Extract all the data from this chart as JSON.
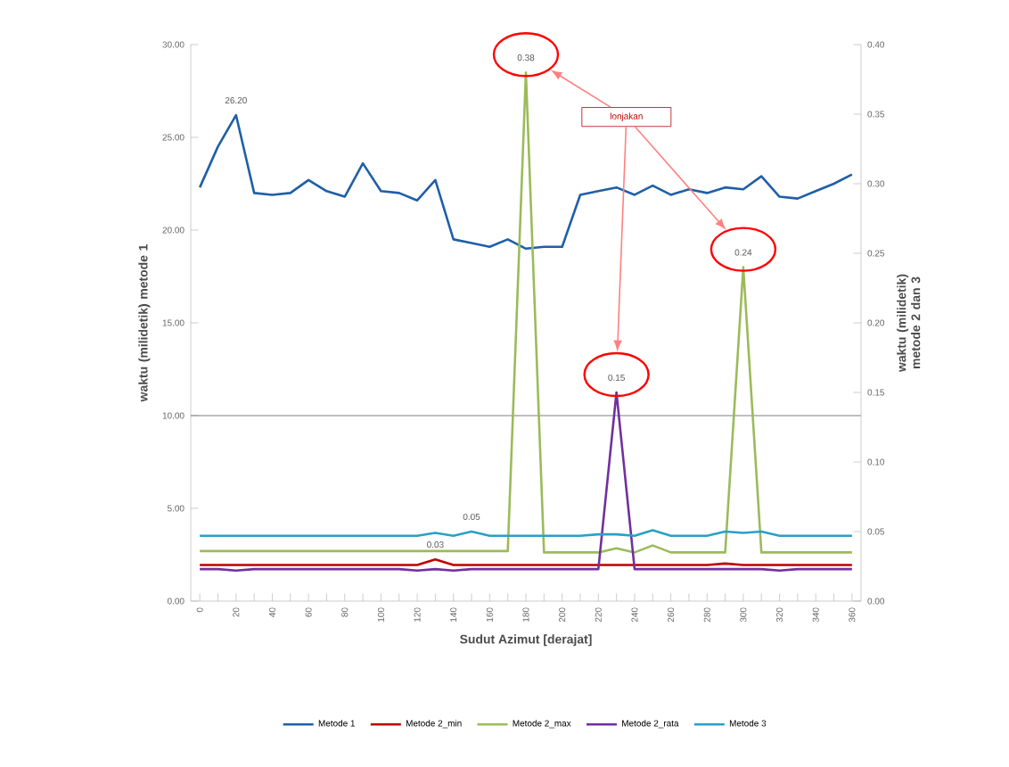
{
  "chart_data": {
    "type": "line",
    "xlabel": "Sudut Azimut [derajat]",
    "ylabel": "waktu (milidetik) metode 1",
    "y2label": "waktu (milidetik) metode 2 dan 3",
    "annotations": [
      "lonjakan"
    ],
    "categories": [
      "0",
      null,
      "20",
      null,
      "40",
      null,
      "60",
      null,
      "80",
      null,
      "100",
      null,
      "120",
      null,
      "140",
      null,
      "160",
      null,
      "180",
      null,
      "200",
      null,
      "220",
      null,
      "240",
      null,
      "260",
      null,
      "280",
      null,
      "300",
      null,
      "320",
      null,
      "340",
      null,
      "360"
    ],
    "series": [
      {
        "name": "Metode 1",
        "color": "#1f5fa8",
        "values": [
          22.3,
          24.5,
          26.2,
          22.0,
          21.9,
          22.0,
          22.7,
          22.1,
          21.8,
          23.6,
          22.1,
          22.0,
          21.6,
          22.7,
          19.5,
          19.3,
          19.1,
          19.5,
          19.0,
          19.1,
          19.1,
          21.9,
          22.1,
          22.3,
          21.9,
          22.4,
          21.9,
          22.2,
          22.0,
          22.3,
          22.2,
          22.9,
          21.8,
          21.7,
          22.1,
          22.5,
          23.0
        ],
        "value_labels": [
          null,
          null,
          "26.20",
          null,
          null,
          null,
          null,
          null,
          null,
          null,
          null,
          null,
          null,
          null,
          null,
          null,
          null,
          null,
          null,
          null,
          null,
          null,
          null,
          null,
          null,
          null,
          null,
          null,
          null,
          null,
          null,
          null,
          null,
          null,
          null,
          null,
          null
        ]
      },
      {
        "name": "Metode 2_min",
        "color": "#c00000",
        "axis": "y2",
        "values": [
          0.026,
          0.026,
          0.026,
          0.026,
          0.026,
          0.026,
          0.026,
          0.026,
          0.026,
          0.026,
          0.026,
          0.026,
          0.026,
          0.03,
          0.026,
          0.026,
          0.026,
          0.026,
          0.026,
          0.026,
          0.026,
          0.026,
          0.026,
          0.026,
          0.026,
          0.026,
          0.026,
          0.026,
          0.026,
          0.027,
          0.026,
          0.026,
          0.026,
          0.026,
          0.026,
          0.026,
          0.026
        ],
        "value_labels": [
          null,
          null,
          null,
          null,
          null,
          null,
          null,
          null,
          null,
          null,
          null,
          null,
          null,
          "0.03",
          null,
          null,
          null,
          null,
          null,
          null,
          null,
          null,
          null,
          null,
          null,
          null,
          null,
          null,
          null,
          null,
          null,
          null,
          null,
          null,
          null,
          null,
          null
        ]
      },
      {
        "name": "Metode 2_max",
        "color": "#9bbb59",
        "axis": "y2",
        "values": [
          0.036,
          0.036,
          0.036,
          0.036,
          0.036,
          0.036,
          0.036,
          0.036,
          0.036,
          0.036,
          0.036,
          0.036,
          0.036,
          0.036,
          0.036,
          0.036,
          0.036,
          0.036,
          0.38,
          0.035,
          0.035,
          0.035,
          0.035,
          0.038,
          0.035,
          0.04,
          0.035,
          0.035,
          0.035,
          0.035,
          0.24,
          0.035,
          0.035,
          0.035,
          0.035,
          0.035,
          0.035
        ],
        "value_labels": [
          null,
          null,
          null,
          null,
          null,
          null,
          null,
          null,
          null,
          null,
          null,
          null,
          null,
          null,
          null,
          null,
          null,
          null,
          "0.38",
          null,
          null,
          null,
          null,
          null,
          null,
          null,
          null,
          null,
          null,
          null,
          "0.24",
          null,
          null,
          null,
          null,
          null,
          null
        ]
      },
      {
        "name": "Metode 2_rata",
        "color": "#7030a0",
        "axis": "y2",
        "values": [
          0.023,
          0.023,
          0.022,
          0.023,
          0.023,
          0.023,
          0.023,
          0.023,
          0.023,
          0.023,
          0.023,
          0.023,
          0.022,
          0.023,
          0.022,
          0.023,
          0.023,
          0.023,
          0.023,
          0.023,
          0.023,
          0.023,
          0.023,
          0.15,
          0.023,
          0.023,
          0.023,
          0.023,
          0.023,
          0.023,
          0.023,
          0.023,
          0.022,
          0.023,
          0.023,
          0.023,
          0.023
        ],
        "value_labels": [
          null,
          null,
          null,
          null,
          null,
          null,
          null,
          null,
          null,
          null,
          null,
          null,
          null,
          null,
          null,
          null,
          null,
          null,
          null,
          null,
          null,
          null,
          null,
          "0.15",
          null,
          null,
          null,
          null,
          null,
          null,
          null,
          null,
          null,
          null,
          null,
          null,
          null
        ]
      },
      {
        "name": "Metode 3",
        "color": "#2aa0c8",
        "axis": "y2",
        "values": [
          0.047,
          0.047,
          0.047,
          0.047,
          0.047,
          0.047,
          0.047,
          0.047,
          0.047,
          0.047,
          0.047,
          0.047,
          0.047,
          0.049,
          0.047,
          0.05,
          0.047,
          0.047,
          0.047,
          0.047,
          0.047,
          0.047,
          0.048,
          0.048,
          0.047,
          0.051,
          0.047,
          0.047,
          0.047,
          0.05,
          0.049,
          0.05,
          0.047,
          0.047,
          0.047,
          0.047,
          0.047
        ],
        "value_labels": [
          null,
          null,
          null,
          null,
          null,
          null,
          null,
          null,
          null,
          null,
          null,
          null,
          null,
          null,
          null,
          "0.05",
          null,
          null,
          null,
          null,
          null,
          null,
          null,
          null,
          null,
          null,
          null,
          null,
          null,
          null,
          null,
          null,
          null,
          null,
          null,
          null,
          null
        ]
      }
    ],
    "ylim": [
      0,
      30
    ],
    "yticks": [
      {
        "value": 0,
        "label": "0.00"
      },
      {
        "value": 5,
        "label": "5.00"
      },
      {
        "value": 10,
        "label": "10.00"
      },
      {
        "value": 15,
        "label": "15.00"
      },
      {
        "value": 20,
        "label": "20.00"
      },
      {
        "value": 25,
        "label": "25.00"
      },
      {
        "value": 30,
        "label": "30.00"
      }
    ],
    "y2lim": [
      0,
      0.4
    ],
    "y2ticks": [
      {
        "value": 0,
        "label": "0.00"
      },
      {
        "value": 0.05,
        "label": "0.05"
      },
      {
        "value": 0.1,
        "label": "0.10"
      },
      {
        "value": 0.15,
        "label": "0.15"
      },
      {
        "value": 0.2,
        "label": "0.20"
      },
      {
        "value": 0.25,
        "label": "0.25"
      },
      {
        "value": 0.3,
        "label": "0.30"
      },
      {
        "value": 0.35,
        "label": "0.35"
      },
      {
        "value": 0.4,
        "label": "0.40"
      }
    ],
    "ref_lines": [
      {
        "axis": "y",
        "value": 10,
        "color": "#808080"
      }
    ],
    "legend": "bottom",
    "grid": false,
    "marker": "none",
    "line_style": "solid"
  }
}
